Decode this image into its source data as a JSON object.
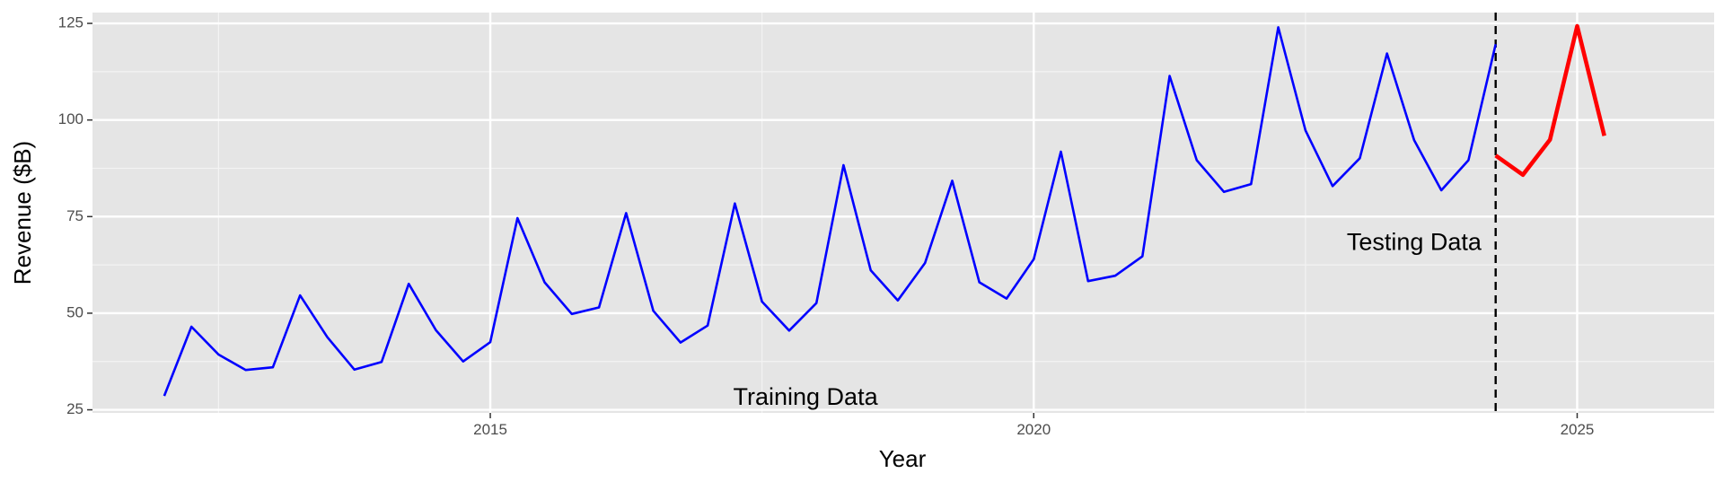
{
  "chart_data": {
    "type": "line",
    "xlabel": "Year",
    "ylabel": "Revenue ($B)",
    "xlim": [
      2011.34,
      2026.26
    ],
    "ylim": [
      24.2,
      127.8
    ],
    "x_ticks": [
      2015,
      2020,
      2025
    ],
    "x_tick_labels": [
      "2015",
      "2020",
      "2025"
    ],
    "y_ticks": [
      25,
      50,
      75,
      100,
      125
    ],
    "y_tick_labels": [
      "25",
      "50",
      "75",
      "100",
      "125"
    ],
    "grid": true,
    "background": "#e5e5e5",
    "split_x": 2024.25,
    "split_line_style": "dashed",
    "annotations": [
      {
        "text": "Training Data",
        "x": 2017.9,
        "y": 28
      },
      {
        "text": "Testing Data",
        "x": 2023.5,
        "y": 68
      }
    ],
    "series": [
      {
        "color": "#0000ff",
        "x": [
          2012.0,
          2012.25,
          2012.5,
          2012.75,
          2013.0,
          2013.25,
          2013.5,
          2013.75,
          2014.0,
          2014.25,
          2014.5,
          2014.75,
          2015.0,
          2015.25,
          2015.5,
          2015.75,
          2016.0,
          2016.25,
          2016.5,
          2016.75,
          2017.0,
          2017.25,
          2017.5,
          2017.75,
          2018.0,
          2018.25,
          2018.5,
          2018.75,
          2019.0,
          2019.25,
          2019.5,
          2019.75,
          2020.0,
          2020.25,
          2020.5,
          2020.75,
          2021.0,
          2021.25,
          2021.5,
          2021.75,
          2022.0,
          2022.25,
          2022.5,
          2022.75,
          2023.0,
          2023.25,
          2023.5,
          2023.75,
          2024.0,
          2024.25
        ],
        "values": [
          28.6,
          46.5,
          39.3,
          35.3,
          36.0,
          54.6,
          43.8,
          35.4,
          37.4,
          57.6,
          45.6,
          37.5,
          42.5,
          74.6,
          58.0,
          49.8,
          51.5,
          75.9,
          50.6,
          42.4,
          46.8,
          78.4,
          53.0,
          45.5,
          52.6,
          88.3,
          61.1,
          53.3,
          63.0,
          84.3,
          58.0,
          53.8,
          64.0,
          91.8,
          58.3,
          59.7,
          64.7,
          111.4,
          89.6,
          81.4,
          83.4,
          124.0,
          97.3,
          82.9,
          90.1,
          117.2,
          94.8,
          81.8,
          89.6,
          119.6
        ]
      },
      {
        "color": "#ff0000",
        "x": [
          2024.25,
          2024.5,
          2024.75,
          2025.0,
          2025.25
        ],
        "values": [
          90.8,
          85.8,
          94.9,
          124.3,
          95.9
        ]
      }
    ]
  }
}
